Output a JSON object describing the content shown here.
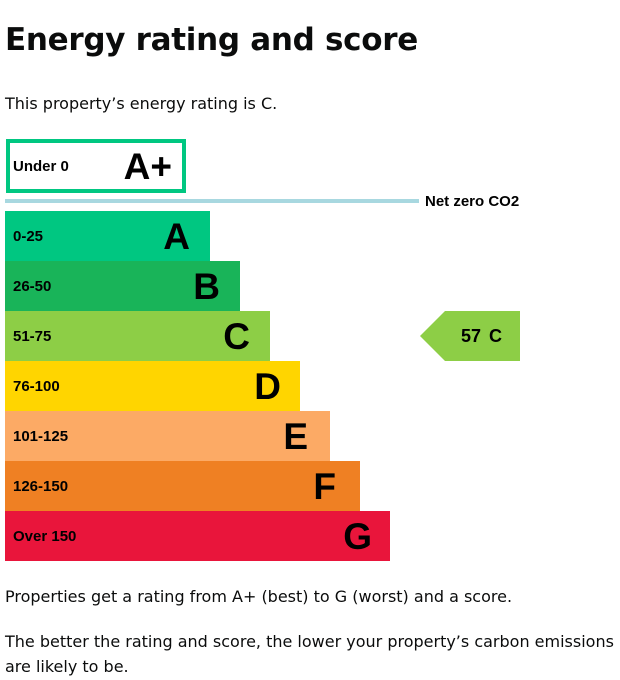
{
  "page": {
    "title": "Energy rating and score",
    "intro": "This property’s energy rating is C.",
    "footer_1": "Properties get a rating from A+ (best) to G (worst) and a score.",
    "footer_2": "The better the rating and score, the lower your property’s carbon emissions are likely to be."
  },
  "rating_chart": {
    "top_band": {
      "range": "Under 0",
      "letter": "A+",
      "color": "#00c781"
    },
    "net_zero_label": "Net zero CO2",
    "net_zero_line_color": "#a8d8e0",
    "bands": [
      {
        "range": "0-25",
        "letter": "A",
        "color": "#00c781"
      },
      {
        "range": "26-50",
        "letter": "B",
        "color": "#19b459"
      },
      {
        "range": "51-75",
        "letter": "C",
        "color": "#8dce46"
      },
      {
        "range": "76-100",
        "letter": "D",
        "color": "#ffd500"
      },
      {
        "range": "101-125",
        "letter": "E",
        "color": "#fcaa65"
      },
      {
        "range": "126-150",
        "letter": "F",
        "color": "#ef8023"
      },
      {
        "range": "Over 150",
        "letter": "G",
        "color": "#e9153b"
      }
    ],
    "current": {
      "score": "57",
      "letter": "C",
      "band_index": 2,
      "color": "#8dce46"
    }
  }
}
